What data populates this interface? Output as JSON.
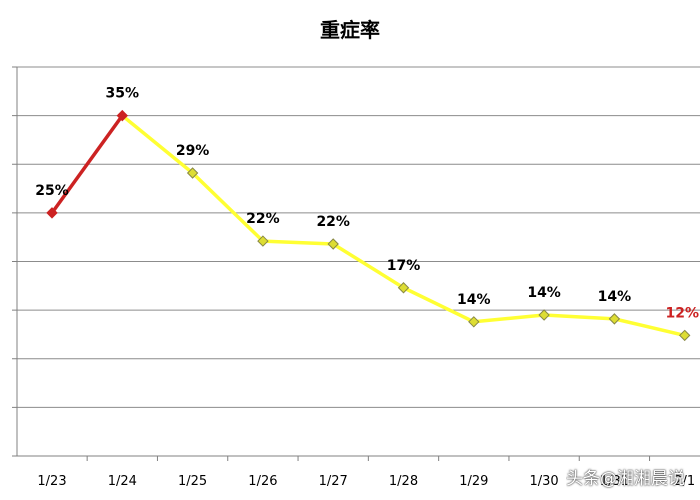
{
  "chart_data": {
    "type": "line",
    "title": "重症率",
    "categories": [
      "1/23",
      "1/24",
      "1/25",
      "1/26",
      "1/27",
      "1/28",
      "1/29",
      "1/30",
      "1/31",
      "2/1"
    ],
    "series": [
      {
        "values": [
          25,
          35,
          29.1,
          22.1,
          21.8,
          17.3,
          13.8,
          14.5,
          14.1,
          12.4
        ],
        "labels": [
          "25%",
          "35%",
          "29%",
          "22%",
          "22%",
          "17%",
          "14%",
          "14%",
          "14%",
          "12%"
        ]
      }
    ],
    "ylim": [
      0,
      40
    ],
    "y_gridline_step": 5,
    "y_tick_labels_visible": false,
    "grid": true,
    "legend": "none",
    "colors": {
      "first_segment": "#cc2222",
      "main_line": "#ffff33",
      "marker_fill": "#dddd33",
      "marker_stroke": "#888844",
      "first_markers": "#cc2222",
      "gridline": "#8c8c8c",
      "data_label": "#000000",
      "last_label": "#cc2222"
    },
    "first_segment_points": 2,
    "highlight_last_label": true
  },
  "watermark": "头条@湘湘晨说"
}
